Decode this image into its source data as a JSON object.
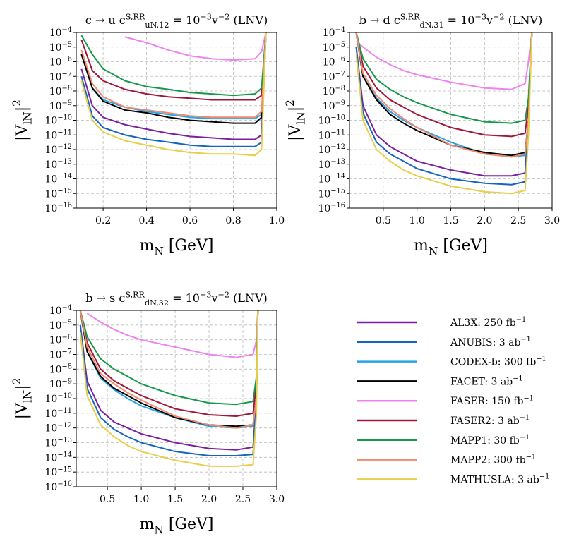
{
  "chart_data": [
    {
      "type": "line",
      "title": "c → u   c^{S,RR}_{uN,12} = 10^{−3}v^{−2} (LNV)",
      "xlabel": "m_{N} [GeV]",
      "ylabel": "|V_{lN}|^{2}",
      "yscale": "log",
      "grid": true,
      "xlim": [
        0.076,
        1.0
      ],
      "ylim": [
        1e-16,
        0.0001
      ],
      "xticks": [
        0.2,
        0.4,
        0.6,
        0.8,
        {
          "value": 1.0,
          "label": "1.0"
        }
      ],
      "yticks": [
        {
          "value": 1e-16,
          "label": "10^{−16}"
        },
        {
          "value": 1e-15,
          "label": "10^{−15}"
        },
        {
          "value": 1e-14,
          "label": "10^{−14}"
        },
        {
          "value": 1e-13,
          "label": "10^{−13}"
        },
        {
          "value": 1e-12,
          "label": "10^{−12}"
        },
        {
          "value": 1e-11,
          "label": "10^{−11}"
        },
        {
          "value": 1e-10,
          "label": "10^{−10}"
        },
        {
          "value": 1e-09,
          "label": "10^{−9}"
        },
        {
          "value": 1e-08,
          "label": "10^{−8}"
        },
        {
          "value": 1e-07,
          "label": "10^{−7}"
        },
        {
          "value": 1e-06,
          "label": "10^{−6}"
        },
        {
          "value": 1e-05,
          "label": "10^{−5}"
        },
        {
          "value": 0.0001,
          "label": "10^{−4}"
        }
      ],
      "x": [
        0.1,
        0.15,
        0.2,
        0.3,
        0.4,
        0.5,
        0.6,
        0.7,
        0.8,
        0.9,
        0.93,
        0.95
      ],
      "series": [
        {
          "name": "AL3X: 250 fb^{−1}",
          "color": "#7b1fa2",
          "values": [
            3.2e-07,
            1e-09,
            1.6e-10,
            5e-11,
            2.5e-11,
            1.3e-11,
            7.9e-12,
            6.3e-12,
            5e-12,
            5e-12,
            1e-11,
            0.0001
          ]
        },
        {
          "name": "ANUBIS: 3 ab^{−1}",
          "color": "#1565c0",
          "values": [
            1e-07,
            2e-10,
            3.2e-11,
            1e-11,
            5e-12,
            3.2e-12,
            2e-12,
            1.6e-12,
            1.6e-12,
            1.6e-12,
            3.2e-12,
            0.0001
          ]
        },
        {
          "name": "CODEX-b: 300 fb^{−1}",
          "color": "#29a3e8",
          "values": [
            3.2e-06,
            1.6e-08,
            2.5e-09,
            7.9e-10,
            4e-10,
            2.5e-10,
            1.6e-10,
            1.3e-10,
            1.3e-10,
            1.3e-10,
            2.5e-10,
            0.0001
          ]
        },
        {
          "name": "FACET: 3 ab^{−1}",
          "color": "#000000",
          "values": [
            3.2e-06,
            1.6e-08,
            2e-09,
            5e-10,
            3.2e-10,
            1.6e-10,
            1e-10,
            7.9e-11,
            6.3e-11,
            6.3e-11,
            1.6e-10,
            0.0001
          ]
        },
        {
          "name": "FASER: 150 fb^{−1}",
          "color": "#ee82ee",
          "values": [
            null,
            null,
            null,
            5e-05,
            2e-05,
            6.3e-06,
            2.5e-06,
            1.6e-06,
            1.3e-06,
            1.6e-06,
            5e-06,
            0.0001
          ]
        },
        {
          "name": "FASER2: 3 ab^{−1}",
          "color": "#a0173a",
          "values": [
            3.2e-05,
            2.5e-07,
            5e-08,
            1.3e-08,
            6.3e-09,
            4e-09,
            3.2e-09,
            2.5e-09,
            2.5e-09,
            2.5e-09,
            5e-09,
            0.0001
          ]
        },
        {
          "name": "MAPP1: 30 fb^{−1}",
          "color": "#17994a",
          "values": [
            6.3e-05,
            3.2e-06,
            3.2e-07,
            5e-08,
            2e-08,
            1.3e-08,
            7.9e-09,
            6.3e-09,
            5e-09,
            6.3e-09,
            1.6e-08,
            0.0001
          ]
        },
        {
          "name": "MAPP2: 300 fb^{−1}",
          "color": "#f08a6c",
          "values": [
            6.3e-06,
            3.2e-08,
            4e-09,
            7.9e-10,
            5e-10,
            3.2e-10,
            2e-10,
            1.6e-10,
            1.6e-10,
            1.6e-10,
            4e-10,
            0.0001
          ]
        },
        {
          "name": "MATHUSLA: 3 ab^{−1}",
          "color": "#e6cf4a",
          "values": [
            5e-08,
            1e-10,
            1.6e-11,
            4e-12,
            2e-12,
            1e-12,
            6.3e-13,
            5e-13,
            5e-13,
            4e-13,
            1e-12,
            0.0001
          ]
        }
      ]
    },
    {
      "type": "line",
      "title": "b → d   c^{S,RR}_{dN,31} = 10^{−3}v^{−2} (LNV)",
      "xlabel": "m_{N} [GeV]",
      "ylabel": "|V_{lN}|^{2}",
      "yscale": "log",
      "grid": true,
      "xlim": [
        0.0,
        3.0
      ],
      "ylim": [
        1e-16,
        0.0001
      ],
      "xticks": [
        0.5,
        {
          "value": 1.0,
          "label": "1.0"
        },
        1.5,
        {
          "value": 2.0,
          "label": "2.0"
        },
        2.5,
        {
          "value": 3.0,
          "label": "3.0"
        }
      ],
      "yticks": [
        {
          "value": 1e-16,
          "label": "10^{−16}"
        },
        {
          "value": 1e-15,
          "label": "10^{−15}"
        },
        {
          "value": 1e-14,
          "label": "10^{−14}"
        },
        {
          "value": 1e-13,
          "label": "10^{−13}"
        },
        {
          "value": 1e-12,
          "label": "10^{−12}"
        },
        {
          "value": 1e-11,
          "label": "10^{−11}"
        },
        {
          "value": 1e-10,
          "label": "10^{−10}"
        },
        {
          "value": 1e-09,
          "label": "10^{−9}"
        },
        {
          "value": 1e-08,
          "label": "10^{−8}"
        },
        {
          "value": 1e-07,
          "label": "10^{−7}"
        },
        {
          "value": 1e-06,
          "label": "10^{−6}"
        },
        {
          "value": 1e-05,
          "label": "10^{−5}"
        },
        {
          "value": 0.0001,
          "label": "10^{−4}"
        }
      ],
      "x": [
        0.1,
        0.2,
        0.4,
        0.6,
        0.8,
        1.0,
        1.5,
        2.0,
        2.4,
        2.6,
        2.65,
        2.7
      ],
      "series": [
        {
          "color": "#7b1fa2",
          "values": [
            1e-05,
            1e-09,
            1e-11,
            1.6e-12,
            5e-13,
            1.6e-13,
            4e-14,
            1.6e-14,
            1.6e-14,
            2.5e-14,
            1e-10,
            0.0001
          ]
        },
        {
          "color": "#1565c0",
          "values": [
            1e-05,
            3.2e-10,
            3.2e-12,
            5e-13,
            1.6e-13,
            5e-14,
            1e-14,
            5e-15,
            4e-15,
            6.3e-15,
            1e-10,
            0.0001
          ]
        },
        {
          "color": "#29a3e8",
          "values": [
            0.0001,
            1e-07,
            3.2e-09,
            4e-10,
            1e-10,
            3.2e-11,
            3.2e-12,
            5e-13,
            3.2e-13,
            4e-13,
            1e-10,
            0.0001
          ]
        },
        {
          "color": "#000000",
          "values": [
            0.0001,
            1e-07,
            2.5e-09,
            2.5e-10,
            6.3e-11,
            2e-11,
            2e-12,
            6.3e-13,
            4e-13,
            6.3e-13,
            1e-10,
            0.0001
          ]
        },
        {
          "color": "#ee82ee",
          "values": [
            2.5e-05,
            1e-05,
            2e-06,
            6.3e-07,
            2.5e-07,
            1.3e-07,
            4e-08,
            1.6e-08,
            1.3e-08,
            3.2e-08,
            1e-06,
            0.0001
          ]
        },
        {
          "color": "#a0173a",
          "values": [
            0.0001,
            5e-07,
            1.6e-08,
            2.5e-09,
            7.9e-10,
            2.5e-10,
            3.2e-11,
            1e-11,
            7.9e-12,
            1.3e-11,
            1e-09,
            0.0001
          ]
        },
        {
          "color": "#17994a",
          "values": [
            0.0001,
            1.6e-06,
            6.3e-08,
            1.3e-08,
            4e-09,
            1.6e-09,
            2.5e-10,
            7.9e-11,
            6.3e-11,
            1e-10,
            3.2e-09,
            0.0001
          ]
        },
        {
          "color": "#f08a6c",
          "values": [
            0.0001,
            1.6e-07,
            5e-09,
            6.3e-10,
            1.3e-10,
            3.2e-11,
            2e-12,
            5e-13,
            3.2e-13,
            5e-13,
            1e-10,
            0.0001
          ]
        },
        {
          "color": "#e6cf4a",
          "values": [
            3.2e-06,
            1e-10,
            1e-12,
            1.6e-13,
            4e-14,
            1.6e-14,
            3.2e-15,
            1.3e-15,
            1e-15,
            1.6e-15,
            1e-11,
            0.0001
          ]
        }
      ]
    },
    {
      "type": "line",
      "title": "b → s   c^{S,RR}_{dN,32} = 10^{−3}v^{−2} (LNV)",
      "xlabel": "m_{N} [GeV]",
      "ylabel": "|V_{lN}|^{2}",
      "yscale": "log",
      "grid": true,
      "xlim": [
        0.04,
        3.0
      ],
      "ylim": [
        1e-16,
        0.0001
      ],
      "xticks": [
        0.5,
        {
          "value": 1.0,
          "label": "1.0"
        },
        1.5,
        {
          "value": 2.0,
          "label": "2.0"
        },
        2.5,
        {
          "value": 3.0,
          "label": "3.0"
        }
      ],
      "yticks": [
        {
          "value": 1e-16,
          "label": "10^{−16}"
        },
        {
          "value": 1e-15,
          "label": "10^{−15}"
        },
        {
          "value": 1e-14,
          "label": "10^{−14}"
        },
        {
          "value": 1e-13,
          "label": "10^{−13}"
        },
        {
          "value": 1e-12,
          "label": "10^{−12}"
        },
        {
          "value": 1e-11,
          "label": "10^{−11}"
        },
        {
          "value": 1e-10,
          "label": "10^{−10}"
        },
        {
          "value": 1e-09,
          "label": "10^{−9}"
        },
        {
          "value": 1e-08,
          "label": "10^{−8}"
        },
        {
          "value": 1e-07,
          "label": "10^{−7}"
        },
        {
          "value": 1e-06,
          "label": "10^{−6}"
        },
        {
          "value": 1e-05,
          "label": "10^{−5}"
        },
        {
          "value": 0.0001,
          "label": "10^{−4}"
        }
      ],
      "x": [
        0.1,
        0.2,
        0.4,
        0.6,
        0.8,
        1.0,
        1.5,
        2.0,
        2.4,
        2.65,
        2.7,
        2.72
      ],
      "series": [
        {
          "color": "#7b1fa2",
          "values": [
            1e-05,
            1.6e-09,
            1.6e-11,
            2.5e-12,
            1e-12,
            4e-13,
            1e-13,
            4e-14,
            3.2e-14,
            5e-14,
            1e-10,
            0.0001
          ]
        },
        {
          "color": "#1565c0",
          "values": [
            1e-05,
            5e-10,
            5e-12,
            7.9e-13,
            2.5e-13,
            1e-13,
            2.5e-14,
            1.3e-14,
            1.3e-14,
            1.6e-14,
            1e-10,
            0.0001
          ]
        },
        {
          "color": "#29a3e8",
          "values": [
            0.0001,
            1.6e-07,
            2.5e-09,
            4e-10,
            1e-10,
            3.2e-11,
            5e-12,
            1.3e-12,
            1e-12,
            1.3e-12,
            1e-10,
            0.0001
          ]
        },
        {
          "color": "#000000",
          "values": [
            0.0001,
            1.6e-07,
            3.2e-09,
            5e-10,
            1.6e-10,
            5e-11,
            5e-12,
            1.6e-12,
            1.3e-12,
            1.6e-12,
            1e-10,
            0.0001
          ]
        },
        {
          "color": "#ee82ee",
          "values": [
            null,
            6.3e-05,
            1.6e-05,
            5e-06,
            2e-06,
            1e-06,
            3.2e-07,
            1e-07,
            6.3e-08,
            1e-07,
            1e-06,
            0.0001
          ]
        },
        {
          "color": "#a0173a",
          "values": [
            0.0001,
            6.3e-07,
            1e-08,
            1.6e-09,
            5e-10,
            1.6e-10,
            2e-11,
            7.9e-12,
            6.3e-12,
            1e-11,
            1e-09,
            0.0001
          ]
        },
        {
          "color": "#17994a",
          "values": [
            0.0001,
            1.6e-06,
            5e-08,
            1e-08,
            3.2e-09,
            1e-09,
            1.6e-10,
            5e-11,
            4e-11,
            6.3e-11,
            3.2e-09,
            0.0001
          ]
        },
        {
          "color": "#f08a6c",
          "values": [
            0.0001,
            3.2e-07,
            5e-09,
            1e-09,
            2.5e-10,
            7.9e-11,
            6.3e-12,
            1.6e-12,
            1e-12,
            1.6e-12,
            1e-10,
            0.0001
          ]
        },
        {
          "color": "#e6cf4a",
          "values": [
            3.2e-06,
            1.6e-10,
            1.6e-12,
            2.5e-13,
            6.3e-14,
            2.5e-14,
            6.3e-15,
            2.5e-15,
            2.5e-15,
            3.2e-15,
            1e-11,
            0.0001
          ]
        }
      ]
    }
  ]
}
